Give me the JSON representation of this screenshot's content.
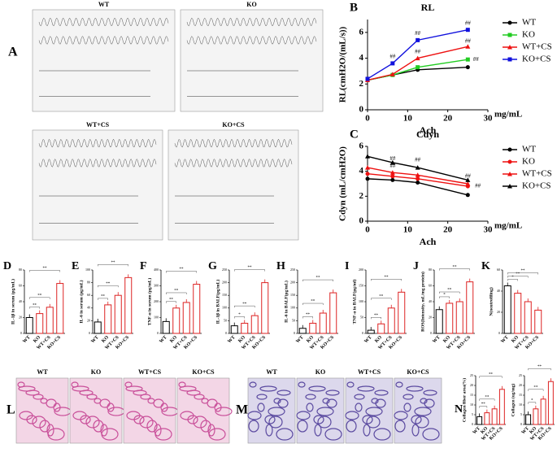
{
  "chart_data": [
    {
      "type": "line",
      "label": "B",
      "title": "RL",
      "y_label": "RL(cmH2O/(mL/s))",
      "x_label": "Ach",
      "x_unit": "mg/mL",
      "x": [
        0,
        6.25,
        12.5,
        25
      ],
      "xlim": [
        0,
        30
      ],
      "xticks": [
        0,
        10,
        20,
        30
      ],
      "ylim": [
        0,
        7
      ],
      "yticks": [
        0,
        2,
        4,
        6
      ],
      "series": [
        {
          "name": "WT",
          "color": "#000000",
          "marker": "circle",
          "values": [
            2.3,
            2.7,
            3.1,
            3.3
          ]
        },
        {
          "name": "KO",
          "color": "#22cc22",
          "marker": "square",
          "values": [
            2.3,
            2.7,
            3.3,
            3.9
          ]
        },
        {
          "name": "WT+CS",
          "color": "#ee1111",
          "marker": "triangle",
          "values": [
            2.3,
            2.75,
            4.0,
            4.9
          ]
        },
        {
          "name": "KO+CS",
          "color": "#1111dd",
          "marker": "square",
          "values": [
            2.4,
            3.6,
            5.4,
            6.2
          ]
        }
      ],
      "annotations": [
        {
          "text": "##",
          "x": 6.25,
          "y": 4.1
        },
        {
          "text": "##",
          "x": 12.5,
          "y": 5.9
        },
        {
          "text": "##",
          "x": 12.5,
          "y": 4.5
        },
        {
          "text": "##",
          "x": 25,
          "y": 6.7
        },
        {
          "text": "##",
          "x": 25,
          "y": 5.3
        },
        {
          "text": "##",
          "x": 27,
          "y": 3.9
        }
      ]
    },
    {
      "type": "line",
      "label": "C",
      "title": "Cdyn",
      "y_label": "Cdyn (mL/cmH2O)",
      "x_label": "Ach",
      "x_unit": "mg/mL",
      "x": [
        0,
        6.25,
        12.5,
        25
      ],
      "xlim": [
        0,
        30
      ],
      "xticks": [
        0,
        10,
        20,
        30
      ],
      "ylim": [
        0,
        6
      ],
      "yticks": [
        0,
        2,
        4,
        6
      ],
      "series": [
        {
          "name": "WT",
          "color": "#000000",
          "marker": "circle",
          "values": [
            3.4,
            3.3,
            3.1,
            2.1
          ]
        },
        {
          "name": "KO",
          "color": "#ee1111",
          "marker": "circle",
          "values": [
            3.8,
            3.6,
            3.4,
            2.8
          ]
        },
        {
          "name": "WT+CS",
          "color": "#ee1111",
          "marker": "triangle",
          "values": [
            4.3,
            3.9,
            3.7,
            3.0
          ]
        },
        {
          "name": "KO+CS",
          "color": "#000000",
          "marker": "triangle",
          "values": [
            5.2,
            4.7,
            4.3,
            3.3
          ]
        }
      ],
      "annotations": [
        {
          "text": "##",
          "x": 6.25,
          "y": 4.4
        },
        {
          "text": "##",
          "x": 6.25,
          "y": 5.0
        },
        {
          "text": "##",
          "x": 12.5,
          "y": 4.9
        },
        {
          "text": "##",
          "x": 25,
          "y": 3.6
        },
        {
          "text": "##",
          "x": 27.5,
          "y": 2.8
        }
      ]
    },
    {
      "type": "bar",
      "label": "D",
      "y_label": "IL-1β in serum (pg/mL)",
      "categories": [
        "WT",
        "KO",
        "WT+CS",
        "KO+CS"
      ],
      "values": [
        20,
        25,
        33,
        63
      ],
      "ylim": [
        0,
        80
      ],
      "yticks": [
        0,
        20,
        40,
        60,
        80
      ],
      "colors": [
        "#000000",
        "#dd2222",
        "#dd2222",
        "#dd2222"
      ],
      "annotations": [
        "**",
        "**",
        "**"
      ]
    },
    {
      "type": "bar",
      "label": "E",
      "y_label": "IL-6 in serum (pg/mL)",
      "categories": [
        "WT",
        "KO",
        "WT+CS",
        "KO+CS"
      ],
      "values": [
        18,
        45,
        60,
        88
      ],
      "ylim": [
        0,
        100
      ],
      "yticks": [
        0,
        20,
        40,
        60,
        80,
        100
      ],
      "colors": [
        "#000000",
        "#dd2222",
        "#dd2222",
        "#dd2222"
      ],
      "annotations": [
        "**",
        "**",
        "**"
      ]
    },
    {
      "type": "bar",
      "label": "F",
      "y_label": "TNF-α in serum (pg/mL)",
      "categories": [
        "WT",
        "KO",
        "WT+CS",
        "KO+CS"
      ],
      "values": [
        75,
        160,
        195,
        310
      ],
      "ylim": [
        0,
        400
      ],
      "yticks": [
        0,
        100,
        200,
        300,
        400
      ],
      "colors": [
        "#000000",
        "#dd2222",
        "#dd2222",
        "#dd2222"
      ],
      "annotations": [
        "**",
        "**",
        "**"
      ]
    },
    {
      "type": "bar",
      "label": "G",
      "y_label": "IL-1β in BALF(pg/mL)",
      "categories": [
        "WT",
        "KO",
        "WT+CS",
        "KO+CS"
      ],
      "values": [
        30,
        40,
        70,
        200
      ],
      "ylim": [
        0,
        250
      ],
      "yticks": [
        0,
        50,
        100,
        150,
        200,
        250
      ],
      "colors": [
        "#000000",
        "#dd2222",
        "#dd2222",
        "#dd2222"
      ],
      "annotations": [
        "*",
        "**",
        "**"
      ]
    },
    {
      "type": "bar",
      "label": "H",
      "y_label": "IL-6 in BALF(pg/mL)",
      "categories": [
        "WT",
        "KO",
        "WT+CS",
        "KO+CS"
      ],
      "values": [
        20,
        40,
        80,
        160
      ],
      "ylim": [
        0,
        250
      ],
      "yticks": [
        0,
        50,
        100,
        150,
        200,
        250
      ],
      "colors": [
        "#000000",
        "#dd2222",
        "#dd2222",
        "#dd2222"
      ],
      "annotations": [
        "**",
        "**",
        "**"
      ]
    },
    {
      "type": "bar",
      "label": "I",
      "y_label": "TNF-α in BALF(pg/ml)",
      "categories": [
        "WT",
        "KO",
        "WT+CS",
        "KO+CS"
      ],
      "values": [
        10,
        30,
        80,
        130
      ],
      "ylim": [
        0,
        200
      ],
      "yticks": [
        0,
        50,
        100,
        150,
        200
      ],
      "colors": [
        "#000000",
        "#dd2222",
        "#dd2222",
        "#dd2222"
      ],
      "annotations": [
        "**",
        "**",
        "**"
      ]
    },
    {
      "type": "bar",
      "label": "J",
      "y_label": "ROS(Intensity, mL/mg protein)",
      "categories": [
        "WT",
        "KO",
        "WT+CS",
        "KO+CS"
      ],
      "values": [
        30,
        38,
        40,
        65
      ],
      "ylim": [
        0,
        80
      ],
      "yticks": [
        0,
        20,
        40,
        60,
        80
      ],
      "colors": [
        "#000000",
        "#dd2222",
        "#dd2222",
        "#dd2222"
      ],
      "annotations": [
        "*",
        "**",
        "**"
      ]
    },
    {
      "type": "bar",
      "label": "K",
      "y_label": "N(neutrofiling)",
      "categories": [
        "WT",
        "KO",
        "WT+CS",
        "KO+CS"
      ],
      "values": [
        45,
        38,
        30,
        22
      ],
      "ylim": [
        0,
        60
      ],
      "yticks": [
        0,
        20,
        40,
        60
      ],
      "colors": [
        "#000000",
        "#dd2222",
        "#dd2222",
        "#dd2222"
      ],
      "annotations": [
        "*",
        "**",
        "**"
      ]
    },
    {
      "type": "bar",
      "label": "N",
      "y_label": "Collagen fiber area(%)",
      "categories": [
        "WT",
        "KO",
        "WT+CS",
        "KO+CS"
      ],
      "values": [
        4,
        6,
        8,
        18
      ],
      "ylim": [
        0,
        25
      ],
      "yticks": [
        0,
        5,
        10,
        15,
        20,
        25
      ],
      "colors": [
        "#000000",
        "#dd2222",
        "#dd2222",
        "#dd2222"
      ],
      "annotations": [
        "**",
        "**",
        "**"
      ]
    },
    {
      "type": "bar",
      "y_label": "Collagen (ug/mg)",
      "categories": [
        "WT",
        "KO",
        "WT+CS",
        "KO+CS"
      ],
      "values": [
        5,
        8,
        13,
        22
      ],
      "ylim": [
        0,
        25
      ],
      "yticks": [
        0,
        5,
        10,
        15,
        20,
        25
      ],
      "colors": [
        "#000000",
        "#dd2222",
        "#dd2222",
        "#dd2222"
      ],
      "annotations": [
        "*",
        "**",
        "**"
      ]
    }
  ],
  "images": [
    {
      "label": "A",
      "kind": "trace",
      "captions": [
        "WT",
        "KO",
        "WT+CS",
        "KO+CS"
      ]
    },
    {
      "label": "L",
      "kind": "he",
      "captions": [
        "WT",
        "KO",
        "WT+CS",
        "KO+CS"
      ]
    },
    {
      "label": "M",
      "kind": "masson",
      "captions": [
        "WT",
        "KO",
        "WT+CS",
        "KO+CS"
      ]
    }
  ]
}
